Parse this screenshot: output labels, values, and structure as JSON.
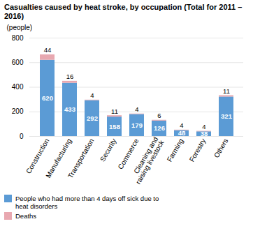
{
  "chart_data": {
    "type": "bar",
    "title": "Casualties caused by heat stroke, by occupation (Total for 2011 – 2016)",
    "categories": [
      "Construction",
      "Manufacturing",
      "Transportation",
      "Security",
      "Commerce",
      "Cleaning and\nraising livestock",
      "Farming",
      "Forestry",
      "Others"
    ],
    "series": [
      {
        "name": "People who had more than 4 days off sick due to\nheat disorders",
        "color": "#5b9bd5",
        "values": [
          620,
          433,
          292,
          158,
          179,
          126,
          48,
          38,
          321
        ]
      },
      {
        "name": "Deaths",
        "color": "#e8a8b0",
        "values": [
          44,
          16,
          4,
          11,
          4,
          6,
          4,
          4,
          11
        ]
      }
    ],
    "ylabel": "(people)",
    "ylim": [
      0,
      800
    ],
    "yticks": [
      0,
      200,
      400,
      600,
      800
    ],
    "stacked": true,
    "grid": true,
    "data_labels": true,
    "legend": "bottom"
  }
}
